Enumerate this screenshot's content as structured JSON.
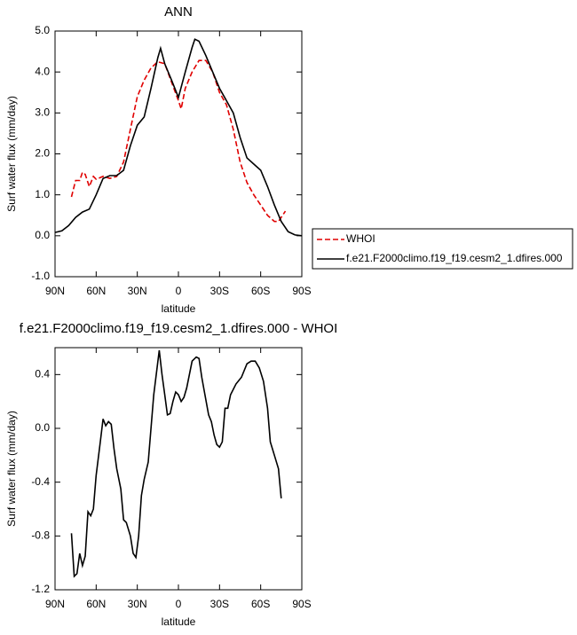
{
  "chart_data": [
    {
      "type": "line",
      "title": "ANN",
      "xlabel": "latitude",
      "ylabel": "Surf water flux (mm/day)",
      "xlim": [
        90,
        -90
      ],
      "ylim": [
        -1,
        5
      ],
      "xticks": [
        {
          "value": 90,
          "label": "90N"
        },
        {
          "value": 60,
          "label": "60N"
        },
        {
          "value": 30,
          "label": "30N"
        },
        0,
        {
          "value": -30,
          "label": "30S"
        },
        {
          "value": -60,
          "label": "60S"
        },
        {
          "value": -90,
          "label": "90S"
        }
      ],
      "yticks": [
        {
          "value": -1,
          "label": "-1.0"
        },
        {
          "value": 0,
          "label": "0.0"
        },
        {
          "value": 1,
          "label": "1.0"
        },
        {
          "value": 2,
          "label": "2.0"
        },
        {
          "value": 3,
          "label": "3.0"
        },
        {
          "value": 4,
          "label": "4.0"
        },
        {
          "value": 5,
          "label": "5.0"
        }
      ],
      "legend": "outside-right",
      "series": [
        {
          "name": "WHOI",
          "color": "#e00000",
          "dashed": true,
          "x": [
            78,
            75,
            72,
            70,
            68,
            65,
            62,
            60,
            55,
            50,
            45,
            40,
            35,
            30,
            25,
            20,
            15,
            10,
            5,
            0,
            -2,
            -5,
            -10,
            -15,
            -20,
            -25,
            -30,
            -35,
            -40,
            -45,
            -50,
            -55,
            -60,
            -65,
            -70,
            -73,
            -75,
            -78
          ],
          "values": [
            0.95,
            1.35,
            1.35,
            1.55,
            1.5,
            1.2,
            1.45,
            1.38,
            1.45,
            1.4,
            1.45,
            1.8,
            2.6,
            3.4,
            3.8,
            4.1,
            4.25,
            4.2,
            3.75,
            3.3,
            3.1,
            3.6,
            4.0,
            4.28,
            4.28,
            4.0,
            3.5,
            3.2,
            2.6,
            1.8,
            1.3,
            1.0,
            0.75,
            0.5,
            0.35,
            0.35,
            0.45,
            0.6
          ]
        },
        {
          "name": "f.e21.F2000climo.f19_f19.cesm2_1.dfires.000",
          "color": "#000000",
          "dashed": false,
          "x": [
            90,
            85,
            80,
            75,
            70,
            65,
            60,
            55,
            50,
            45,
            40,
            35,
            30,
            25,
            20,
            15,
            13,
            10,
            5,
            0,
            -5,
            -10,
            -12,
            -15,
            -20,
            -25,
            -30,
            -35,
            -40,
            -45,
            -50,
            -55,
            -60,
            -65,
            -70,
            -75,
            -80,
            -85,
            -90
          ],
          "values": [
            0.08,
            0.12,
            0.25,
            0.45,
            0.58,
            0.65,
            1.0,
            1.4,
            1.47,
            1.47,
            1.6,
            2.2,
            2.7,
            2.9,
            3.6,
            4.35,
            4.58,
            4.2,
            3.8,
            3.38,
            4.0,
            4.6,
            4.8,
            4.75,
            4.4,
            4.0,
            3.6,
            3.3,
            3.0,
            2.4,
            1.9,
            1.75,
            1.6,
            1.2,
            0.75,
            0.35,
            0.1,
            0.02,
            0.0
          ]
        }
      ]
    },
    {
      "type": "line",
      "title": "f.e21.F2000climo.f19_f19.cesm2_1.dfires.000 - WHOI",
      "xlabel": "latitude",
      "ylabel": "Surf water flux (mm/day)",
      "xlim": [
        90,
        -90
      ],
      "ylim": [
        -1.2,
        0.6
      ],
      "xticks": [
        {
          "value": 90,
          "label": "90N"
        },
        {
          "value": 60,
          "label": "60N"
        },
        {
          "value": 30,
          "label": "30N"
        },
        0,
        {
          "value": -30,
          "label": "30S"
        },
        {
          "value": -60,
          "label": "60S"
        },
        {
          "value": -90,
          "label": "90S"
        }
      ],
      "yticks": [
        -1.2,
        -0.8,
        -0.4,
        {
          "value": 0,
          "label": "0.0"
        },
        0.4
      ],
      "series": [
        {
          "color": "#000000",
          "dashed": false,
          "x": [
            78,
            76,
            74,
            72,
            70,
            68,
            66,
            64,
            62,
            60,
            57,
            55,
            53,
            51,
            49,
            47,
            45,
            42,
            40,
            38,
            35,
            33,
            31,
            29,
            27,
            25,
            22,
            18,
            14,
            12,
            10,
            8,
            6,
            4,
            2,
            0,
            -2,
            -4,
            -6,
            -10,
            -13,
            -15,
            -17,
            -19,
            -22,
            -24,
            -26,
            -28,
            -30,
            -32,
            -34,
            -36,
            -38,
            -42,
            -46,
            -50,
            -53,
            -56,
            -59,
            -62,
            -65,
            -67,
            -70,
            -73,
            -75
          ],
          "values": [
            -0.78,
            -1.1,
            -1.08,
            -0.93,
            -1.02,
            -0.95,
            -0.62,
            -0.65,
            -0.6,
            -0.35,
            -0.1,
            0.07,
            0.02,
            0.05,
            0.03,
            -0.15,
            -0.3,
            -0.45,
            -0.68,
            -0.7,
            -0.8,
            -0.93,
            -0.96,
            -0.8,
            -0.5,
            -0.38,
            -0.25,
            0.25,
            0.58,
            0.4,
            0.25,
            0.1,
            0.11,
            0.2,
            0.27,
            0.25,
            0.2,
            0.23,
            0.3,
            0.5,
            0.53,
            0.52,
            0.38,
            0.27,
            0.1,
            0.05,
            -0.05,
            -0.12,
            -0.14,
            -0.1,
            0.15,
            0.15,
            0.25,
            0.33,
            0.38,
            0.48,
            0.5,
            0.5,
            0.45,
            0.35,
            0.15,
            -0.1,
            -0.2,
            -0.3,
            -0.52
          ]
        }
      ]
    }
  ]
}
